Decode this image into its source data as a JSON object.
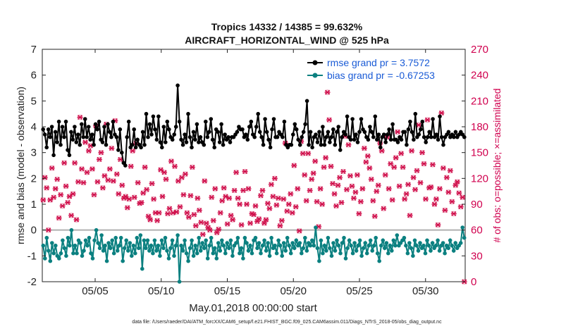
{
  "chart_data": {
    "type": "line",
    "title_line1": "Tropics 14332 / 14385 = 99.632%",
    "title_line2": "AIRCRAFT_HORIZONTAL_WIND @ 525 hPa",
    "ylabel": "rmse and bias (model - observation)",
    "ylabel_right": "# of obs: o=possible; ×=assimilated",
    "xlabel": "May.01,2018 00:00:00 start",
    "footnote": "data file: /Users/raeder/DAI/ATM_forcXX/CAM6_setup/f.e21.FHIST_BGC.f09_025.CAM6assim.011/Diags_NTrS_2018-05/obs_diag_output.nc",
    "ylim": [
      -2,
      7
    ],
    "ylim_right": [
      0,
      270
    ],
    "xlim": [
      1,
      33
    ],
    "yticks": [
      "-2",
      "-1",
      "0",
      "1",
      "2",
      "3",
      "4",
      "5",
      "6",
      "7"
    ],
    "yticks_right": [
      "0",
      "30",
      "60",
      "90",
      "120",
      "150",
      "180",
      "210",
      "240",
      "270"
    ],
    "xticks": [
      {
        "day": 5,
        "label": "05/05"
      },
      {
        "day": 10,
        "label": "05/10"
      },
      {
        "day": 15,
        "label": "05/15"
      },
      {
        "day": 20,
        "label": "05/20"
      },
      {
        "day": 25,
        "label": "05/25"
      },
      {
        "day": 30,
        "label": "05/30"
      }
    ],
    "series": [
      {
        "name": "rmse grand pr = 3.7572",
        "color": "#000000",
        "axis": "left",
        "values": [
          3.9,
          3.7,
          3.2,
          3.9,
          3.6,
          4.0,
          2.9,
          3.8,
          3.4,
          4.2,
          3.3,
          4.0,
          3.6,
          4.2,
          3.1,
          2.9,
          3.8,
          3.5,
          4.0,
          3.4,
          3.7,
          3.3,
          4.1,
          3.6,
          4.3,
          3.6,
          4.0,
          3.5,
          3.7,
          3.3,
          4.1,
          3.9,
          4.2,
          3.5,
          3.4,
          4.0,
          3.3,
          4.1,
          3.8,
          3.6,
          4.2,
          3.7,
          3.6,
          3.1,
          3.9,
          3.0,
          2.6,
          2.5,
          3.6,
          4.2,
          3.2,
          3.3,
          3.9,
          3.2,
          3.5,
          3.3,
          3.2,
          3.8,
          3.3,
          4.5,
          3.6,
          4.1,
          3.7,
          4.4,
          3.9,
          3.5,
          4.4,
          3.4,
          3.2,
          4.0,
          3.4,
          4.2,
          3.9,
          3.6,
          3.5,
          3.7,
          4.0,
          5.6,
          4.2,
          3.5,
          3.3,
          3.7,
          3.4,
          4.5,
          3.6,
          3.2,
          3.8,
          3.5,
          4.1,
          3.4,
          3.6,
          3.4,
          3.3,
          4.2,
          3.6,
          3.8,
          4.3,
          3.5,
          3.2,
          3.9,
          3.8,
          3.4,
          4.1,
          3.3,
          3.7,
          3.5,
          3.6,
          3.4,
          3.6,
          3.6,
          3.7,
          3.8,
          4.0,
          3.9,
          3.9,
          3.6,
          3.7,
          3.5,
          4.0,
          4.2,
          3.7,
          3.6,
          4.0,
          4.5,
          3.8,
          3.6,
          3.3,
          4.3,
          3.8,
          3.5,
          3.2,
          3.9,
          4.3,
          3.6,
          3.6,
          3.8,
          3.7,
          3.6,
          4.2,
          3.3,
          3.2,
          3.3,
          3.3,
          3.7,
          4.1,
          3.9,
          3.5,
          3.3,
          3.6,
          3.8,
          4.1,
          5.0,
          3.3,
          3.8,
          3.2,
          3.6,
          3.7,
          3.4,
          3.8,
          3.3,
          4.0,
          3.3,
          3.6,
          3.8,
          3.4,
          3.6,
          3.9,
          3.3,
          3.8,
          4.0,
          3.1,
          3.6,
          3.8,
          3.7,
          4.4,
          3.6,
          3.5,
          4.3,
          3.5,
          3.7,
          3.4,
          3.8,
          4.3,
          3.9,
          3.8,
          3.6,
          3.5,
          4.0,
          3.8,
          3.6,
          4.4,
          3.5,
          3.7,
          3.2,
          3.6,
          3.7,
          3.4,
          3.7,
          3.9,
          3.5,
          4.1,
          3.5,
          3.5,
          3.4,
          3.6,
          3.5,
          3.8,
          3.8,
          3.3,
          3.9,
          4.2,
          3.8,
          3.5,
          4.5,
          3.6,
          3.7,
          3.9,
          4.2,
          3.6,
          3.4,
          3.6,
          3.8,
          3.6,
          4.3,
          3.6,
          3.7,
          3.5,
          4.4,
          3.6,
          3.3,
          3.6,
          3.7,
          3.8,
          3.6,
          3.7,
          3.6,
          3.8,
          3.6,
          3.7,
          3.8,
          3.7,
          3.6
        ]
      },
      {
        "name": "bias grand pr = -0.67253",
        "color": "#0b8080",
        "axis": "left",
        "values": [
          -0.6,
          -1.1,
          -0.3,
          -0.8,
          -1.2,
          -0.5,
          -0.9,
          -0.6,
          -1.0,
          -1.1,
          -0.9,
          -0.4,
          -0.7,
          -1.0,
          -0.3,
          -0.6,
          0.0,
          -0.9,
          -0.6,
          -0.9,
          -0.4,
          -0.5,
          -1.0,
          -0.8,
          -0.4,
          -0.6,
          -0.3,
          -0.9,
          -1.1,
          -0.4,
          0.0,
          -0.5,
          -0.7,
          -0.2,
          -0.8,
          -0.6,
          -1.2,
          -0.5,
          -0.7,
          -0.4,
          -0.9,
          -0.3,
          -0.8,
          -0.6,
          -0.3,
          -1.2,
          -0.7,
          -0.4,
          -0.8,
          -0.5,
          -1.0,
          -0.6,
          -0.9,
          -0.3,
          -0.7,
          -0.2,
          -1.5,
          -0.4,
          -0.7,
          -0.4,
          -0.8,
          -0.6,
          -0.9,
          -0.4,
          -0.8,
          -0.6,
          -1.0,
          -0.4,
          -0.7,
          -0.3,
          -0.8,
          -1.1,
          -0.7,
          -0.4,
          -1.0,
          -0.6,
          -0.2,
          -2.0,
          -0.6,
          -0.8,
          -0.4,
          -0.9,
          -1.2,
          -0.7,
          -0.4,
          -1.0,
          -0.6,
          -0.9,
          -0.3,
          -0.8,
          -0.5,
          -0.7,
          -0.4,
          -1.1,
          -0.6,
          -0.3,
          -0.9,
          -0.7,
          -1.1,
          -0.5,
          -0.8,
          -0.4,
          -0.6,
          -0.9,
          -0.5,
          -0.7,
          -0.4,
          -1.0,
          -0.6,
          -0.5,
          -0.3,
          -0.9,
          -0.7,
          -1.1,
          -0.3,
          -0.5,
          -0.8,
          -0.6,
          -0.9,
          -0.4,
          -0.3,
          -0.7,
          -0.5,
          -0.9,
          -0.6,
          -0.4,
          -0.8,
          -0.5,
          -1.0,
          -0.3,
          -0.7,
          -0.6,
          -0.9,
          -0.4,
          -0.6,
          -1.0,
          -0.5,
          -0.8,
          -0.3,
          -0.6,
          -0.9,
          -0.5,
          -0.7,
          -0.4,
          -0.6,
          -0.5,
          -0.9,
          -0.7,
          -0.3,
          -0.8,
          -0.5,
          -0.6,
          -0.4,
          -0.6,
          0.1,
          -0.7,
          -1.2,
          -0.4,
          -0.9,
          -0.6,
          -0.8,
          -0.3,
          -0.7,
          -1.0,
          -0.5,
          -0.8,
          -0.4,
          -0.6,
          -0.9,
          -0.5,
          -0.3,
          -1.1,
          -0.7,
          -0.4,
          -0.6,
          -0.9,
          -0.5,
          -0.8,
          -0.6,
          -0.4,
          -1.0,
          -0.7,
          -0.5,
          -0.9,
          -0.6,
          -0.4,
          -0.8,
          -0.6,
          -0.3,
          -0.9,
          -1.2,
          -0.6,
          -0.4,
          -0.7,
          -0.5,
          -0.9,
          -0.6,
          -0.8,
          -0.4,
          -0.6,
          -0.2,
          -0.6,
          -0.5,
          -0.4,
          -0.3,
          -0.6,
          -0.9,
          -0.5,
          -0.7,
          -1.0,
          -0.4,
          -0.6,
          -0.8,
          -0.5,
          -0.7,
          -0.6,
          -0.9,
          -0.4,
          -0.6,
          -0.8,
          -0.5,
          -0.7,
          -0.6,
          -0.4,
          -0.8,
          -0.6,
          -0.5,
          -0.9,
          -0.6,
          -0.7,
          -0.4,
          -0.6,
          -0.8,
          -0.5,
          -0.7,
          -0.6,
          -0.5,
          0.1,
          -0.3
        ]
      }
    ],
    "obs_counts": {
      "color": "#d0104c",
      "axis": "right",
      "assimilated": [
        95,
        121,
        109,
        60,
        95,
        132,
        98,
        108,
        119,
        74,
        101,
        88,
        138,
        111,
        92,
        99,
        77,
        102,
        138,
        72,
        116,
        191,
        131,
        115,
        162,
        127,
        152,
        158,
        131,
        101,
        181,
        116,
        142,
        150,
        109,
        123,
        183,
        118,
        131,
        155,
        117,
        187,
        125,
        102,
        142,
        112,
        97,
        99,
        86,
        96,
        134,
        152,
        98,
        161,
        115,
        91,
        92,
        103,
        133,
        107,
        76,
        72,
        114,
        96,
        80,
        71,
        80,
        130,
        99,
        127,
        119,
        79,
        85,
        140,
        80,
        134,
        81,
        117,
        87,
        121,
        101,
        125,
        80,
        75,
        100,
        133,
        78,
        65,
        97,
        83,
        69,
        55,
        117,
        68,
        63,
        60,
        98,
        71,
        108,
        57,
        61,
        80,
        94,
        109,
        99,
        67,
        97,
        77,
        72,
        106,
        127,
        97,
        90,
        66,
        106,
        128,
        90,
        108,
        68,
        79,
        78,
        88,
        70,
        73,
        100,
        106,
        68,
        72,
        91,
        85,
        113,
        99,
        120,
        89,
        97,
        65,
        71,
        96,
        161,
        82,
        90,
        102,
        80,
        135,
        87,
        108,
        59,
        163,
        149,
        124,
        94,
        149,
        106,
        119,
        126,
        140,
        93,
        64,
        108,
        90,
        133,
        144,
        220,
        188,
        134,
        114,
        102,
        88,
        112,
        121,
        92,
        128,
        169,
        107,
        159,
        123,
        111,
        97,
        104,
        124,
        79,
        93,
        108,
        155,
        139,
        146,
        132,
        119,
        94,
        76,
        105,
        112,
        161,
        152,
        85,
        124,
        168,
        108,
        137,
        95,
        133,
        144,
        174,
        111,
        149,
        133,
        96,
        102,
        113,
        77,
        152,
        121,
        107,
        129,
        182,
        115,
        150,
        137,
        96,
        188,
        109,
        110,
        136,
        90,
        96,
        66,
        108,
        196,
        132,
        83,
        121,
        104,
        129,
        93,
        79,
        112,
        116,
        103,
        87,
        98,
        0
      ],
      "possible": [
        95,
        121,
        109,
        60,
        95,
        132,
        98,
        108,
        119,
        74,
        101,
        88,
        138,
        111,
        92,
        99,
        77,
        102,
        138,
        72,
        116,
        191,
        131,
        115,
        162,
        127,
        152,
        158,
        131,
        101,
        181,
        116,
        142,
        150,
        109,
        123,
        183,
        118,
        131,
        155,
        117,
        187,
        125,
        102,
        142,
        112,
        97,
        99,
        86,
        96,
        134,
        152,
        98,
        161,
        115,
        91,
        92,
        103,
        133,
        107,
        76,
        72,
        114,
        96,
        80,
        71,
        80,
        130,
        99,
        127,
        119,
        79,
        85,
        140,
        80,
        134,
        81,
        117,
        87,
        121,
        101,
        125,
        80,
        75,
        100,
        133,
        78,
        65,
        97,
        83,
        69,
        55,
        117,
        68,
        63,
        60,
        98,
        71,
        108,
        57,
        61,
        80,
        94,
        109,
        99,
        67,
        97,
        77,
        72,
        106,
        127,
        97,
        90,
        66,
        106,
        128,
        90,
        108,
        68,
        79,
        78,
        88,
        70,
        73,
        100,
        106,
        68,
        72,
        91,
        85,
        113,
        99,
        120,
        89,
        97,
        65,
        71,
        96,
        161,
        82,
        90,
        102,
        80,
        135,
        87,
        108,
        59,
        163,
        149,
        124,
        94,
        149,
        106,
        119,
        126,
        140,
        93,
        64,
        108,
        90,
        133,
        144,
        220,
        188,
        134,
        114,
        102,
        88,
        112,
        121,
        92,
        128,
        169,
        107,
        159,
        123,
        111,
        97,
        104,
        124,
        79,
        93,
        108,
        155,
        139,
        146,
        132,
        119,
        94,
        76,
        105,
        112,
        161,
        152,
        85,
        124,
        168,
        108,
        137,
        95,
        133,
        144,
        174,
        111,
        149,
        133,
        96,
        102,
        113,
        77,
        152,
        121,
        107,
        129,
        182,
        115,
        150,
        137,
        96,
        188,
        109,
        110,
        136,
        90,
        96,
        66,
        108,
        196,
        132,
        83,
        121,
        104,
        129,
        93,
        79,
        112,
        116,
        103,
        87,
        98,
        0
      ]
    }
  }
}
